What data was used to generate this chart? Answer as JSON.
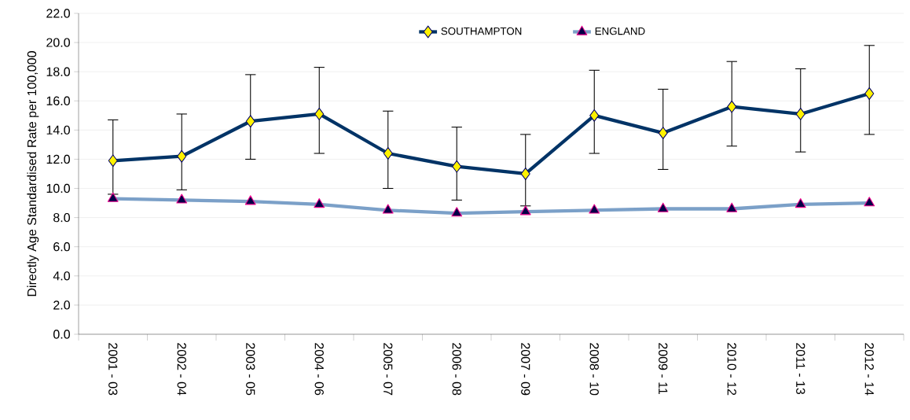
{
  "chart_data": {
    "type": "line",
    "ylabel": "Directly Age Standardised Rate per 100,000",
    "categories": [
      "2001 - 03",
      "2002 - 04",
      "2003 - 05",
      "2004 - 06",
      "2005 - 07",
      "2006 - 08",
      "2007 - 09",
      "2008 - 10",
      "2009 - 11",
      "2010 - 12",
      "2011 - 13",
      "2012 - 14"
    ],
    "series": [
      {
        "name": "SOUTHAMPTON",
        "color": "#003366",
        "marker": "diamond",
        "values": [
          11.9,
          12.2,
          14.6,
          15.1,
          12.4,
          11.5,
          11.0,
          15.0,
          13.8,
          15.6,
          15.1,
          16.5
        ],
        "errors": [
          [
            9.6,
            14.7
          ],
          [
            9.9,
            15.1
          ],
          [
            12.0,
            17.8
          ],
          [
            12.4,
            18.3
          ],
          [
            10.0,
            15.3
          ],
          [
            9.2,
            14.2
          ],
          [
            8.8,
            13.7
          ],
          [
            12.4,
            18.1
          ],
          [
            11.3,
            16.8
          ],
          [
            12.9,
            18.7
          ],
          [
            12.5,
            18.2
          ],
          [
            13.7,
            19.8
          ]
        ]
      },
      {
        "name": "ENGLAND",
        "color": "#7ba0c8",
        "marker": "triangle",
        "values": [
          9.3,
          9.2,
          9.1,
          8.9,
          8.5,
          8.3,
          8.4,
          8.5,
          8.6,
          8.6,
          8.9,
          9.0
        ]
      }
    ],
    "ylim": [
      0,
      22
    ],
    "yticks": [
      {
        "value": 0,
        "label": "0.0"
      },
      {
        "value": 2,
        "label": "2.0"
      },
      {
        "value": 4,
        "label": "4.0"
      },
      {
        "value": 6,
        "label": "6.0"
      },
      {
        "value": 8,
        "label": "8.0"
      },
      {
        "value": 10,
        "label": "10.0"
      },
      {
        "value": 12,
        "label": "12.0"
      },
      {
        "value": 14,
        "label": "14.0"
      },
      {
        "value": 16,
        "label": "16.0"
      },
      {
        "value": 18,
        "label": "18.0"
      },
      {
        "value": 20,
        "label": "20.0"
      },
      {
        "value": 22,
        "label": "22.0"
      }
    ],
    "grid": "y",
    "legend": "top",
    "line_style": "solid"
  }
}
